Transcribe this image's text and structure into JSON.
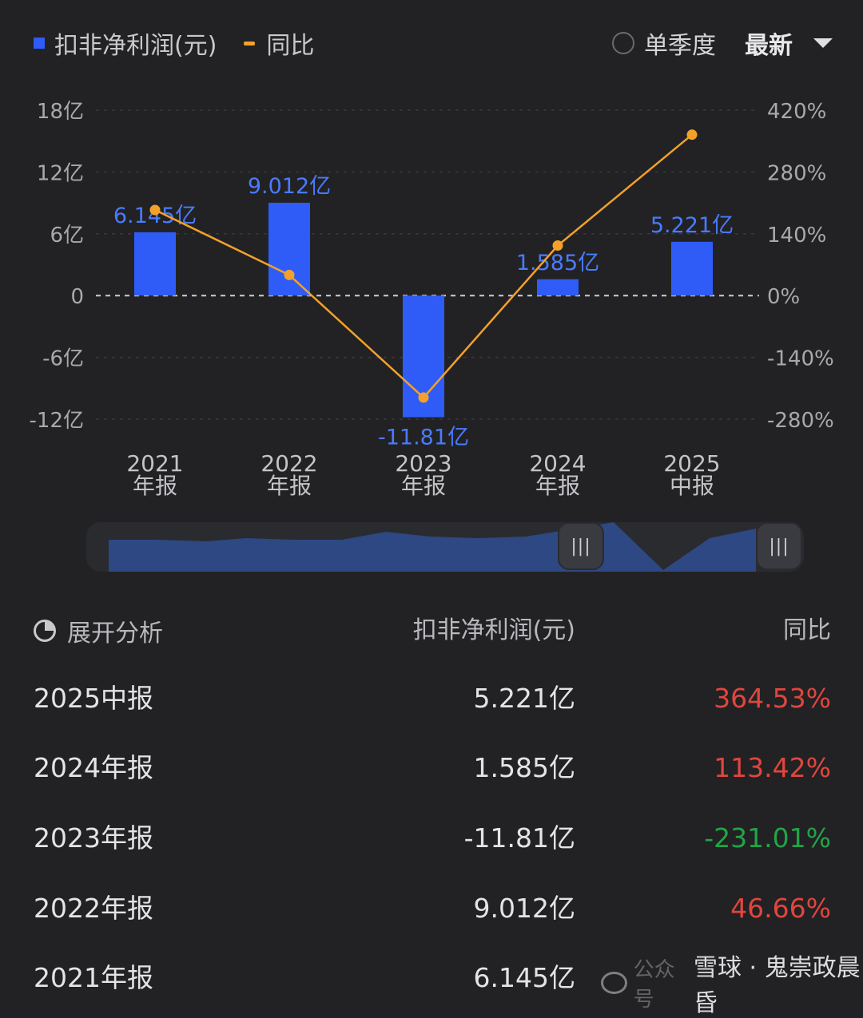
{
  "legend": {
    "series1": "扣非净利润(元)",
    "series2": "同比"
  },
  "controls": {
    "single_quarter": "单季度",
    "latest": "最新"
  },
  "colors": {
    "bar": "#2f5cf6",
    "line": "#f3a12a",
    "positive": "#e0463e",
    "negative": "#22a447",
    "background": "#222224"
  },
  "chart_data": {
    "type": "bar",
    "categories": [
      "2021\n年报",
      "2022\n年报",
      "2023\n年报",
      "2024\n年报",
      "2025\n中报"
    ],
    "series": [
      {
        "name": "扣非净利润(元)",
        "type": "bar",
        "axis": "left",
        "values": [
          6.145,
          9.012,
          -11.81,
          1.585,
          5.221
        ],
        "labels": [
          "6.145亿",
          "9.012亿",
          "-11.81亿",
          "1.585亿",
          "5.221亿"
        ]
      },
      {
        "name": "同比",
        "type": "line",
        "axis": "right",
        "values": [
          193.9,
          46.66,
          -231.01,
          113.42,
          364.53
        ]
      }
    ],
    "y_left": {
      "ticks": [
        "18亿",
        "12亿",
        "6亿",
        "0",
        "-6亿",
        "-12亿"
      ],
      "tick_values": [
        18,
        12,
        6,
        0,
        -6,
        -12
      ],
      "ylim": [
        -12,
        18
      ]
    },
    "y_right": {
      "ticks": [
        "420%",
        "280%",
        "140%",
        "0%",
        "-140%",
        "-280%"
      ],
      "tick_values": [
        420,
        280,
        140,
        0,
        -140,
        -280
      ],
      "ylim": [
        -280,
        420
      ]
    },
    "grid": true,
    "zero_line": "dashed"
  },
  "table": {
    "headers": {
      "col1": "展开分析",
      "col2": "扣非净利润(元)",
      "col3": "同比"
    },
    "rows": [
      {
        "period": "2025中报",
        "value": "5.221亿",
        "yoy": "364.53%"
      },
      {
        "period": "2024年报",
        "value": "1.585亿",
        "yoy": "113.42%"
      },
      {
        "period": "2023年报",
        "value": "-11.81亿",
        "yoy": "-231.01%"
      },
      {
        "period": "2022年报",
        "value": "9.012亿",
        "yoy": "46.66%"
      },
      {
        "period": "2021年报",
        "value": "6.145亿",
        "yoy": ""
      }
    ]
  },
  "watermark": {
    "ghost": "公众号",
    "text": "雪球 · 鬼崇政晨昏"
  }
}
